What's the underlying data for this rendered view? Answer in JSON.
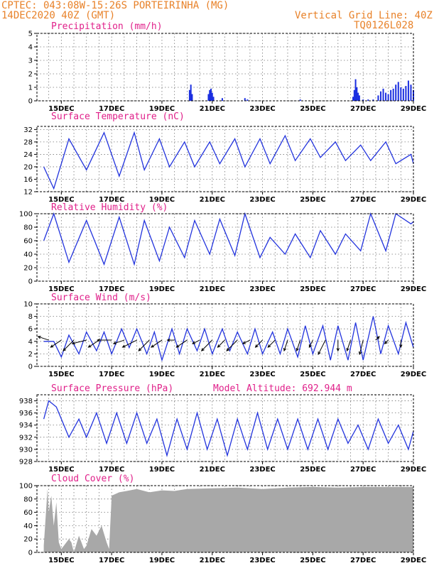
{
  "header": {
    "line1_left": "CPTEC:  043:08W-15:26S   PORTEIRINHA (MG)",
    "line2_left": "14DEC2020 40Z (GMT)",
    "line1_right": "Vertical Grid Line: 40Z",
    "line2_right": "TQ0126L028"
  },
  "x_labels": [
    "15DEC",
    "17DEC",
    "19DEC",
    "21DEC",
    "23DEC",
    "25DEC",
    "27DEC",
    "29DEC"
  ],
  "colors": {
    "line": "#2233dd",
    "bar": "#1a2ee0",
    "cloud": "#a8a8a8",
    "header": "#e8822a",
    "title": "#e0208a"
  },
  "chart_data": [
    {
      "type": "bar",
      "title": "Precipitation (mm/h)",
      "ylim": [
        0,
        5
      ],
      "yticks": [
        "0",
        "1",
        "2",
        "3",
        "4",
        "5"
      ],
      "x": [
        20.1,
        20.15,
        20.2,
        20.85,
        20.9,
        20.95,
        21.0,
        21.05,
        21.4,
        22.3,
        22.4,
        24.5,
        26.6,
        26.65,
        26.7,
        26.75,
        26.8,
        26.85,
        27.0,
        27.2,
        27.4,
        27.6,
        27.7,
        27.8,
        27.9,
        28.0,
        28.1,
        28.2,
        28.3,
        28.4,
        28.5,
        28.6,
        28.7,
        28.8,
        28.9,
        29.0
      ],
      "values": [
        0.8,
        1.2,
        0.5,
        0.5,
        0.8,
        0.9,
        0.6,
        0.3,
        0.2,
        0.2,
        0.1,
        0.1,
        0.3,
        0.8,
        1.6,
        1.0,
        0.6,
        0.4,
        0.1,
        0.1,
        0.1,
        0.4,
        0.7,
        0.9,
        0.6,
        0.5,
        0.8,
        0.9,
        1.2,
        1.4,
        1.0,
        0.9,
        1.1,
        1.5,
        1.2,
        0.8
      ]
    },
    {
      "type": "line",
      "title": "Surface Temperature (nC)",
      "ylim": [
        12,
        33
      ],
      "yticks": [
        "12",
        "16",
        "20",
        "24",
        "28",
        "32"
      ],
      "x": [
        14.3,
        14.7,
        15.3,
        16.0,
        16.7,
        17.3,
        17.9,
        18.3,
        18.9,
        19.3,
        19.9,
        20.3,
        20.9,
        21.3,
        21.9,
        22.3,
        22.9,
        23.3,
        23.9,
        24.3,
        24.9,
        25.3,
        25.9,
        26.3,
        26.9,
        27.3,
        27.9,
        28.3,
        28.9,
        29.0
      ],
      "values": [
        20,
        13,
        29,
        19,
        31,
        17,
        31,
        19,
        29,
        20,
        28,
        20,
        28,
        21,
        29,
        20,
        29,
        21,
        30,
        22,
        29,
        23,
        28,
        22,
        27,
        22,
        28,
        21,
        24,
        21
      ]
    },
    {
      "type": "line",
      "title": "Relative Humidity (%)",
      "ylim": [
        0,
        100
      ],
      "yticks": [
        "0",
        "20",
        "40",
        "60",
        "80",
        "100"
      ],
      "x": [
        14.3,
        14.7,
        15.3,
        16.0,
        16.7,
        17.3,
        17.9,
        18.3,
        18.9,
        19.3,
        19.9,
        20.3,
        20.9,
        21.3,
        21.9,
        22.3,
        22.9,
        23.3,
        23.9,
        24.3,
        24.9,
        25.3,
        25.9,
        26.3,
        26.9,
        27.3,
        27.9,
        28.3,
        28.9,
        29.0
      ],
      "values": [
        60,
        100,
        28,
        90,
        25,
        95,
        25,
        90,
        30,
        80,
        35,
        90,
        40,
        92,
        38,
        100,
        35,
        65,
        40,
        70,
        35,
        75,
        40,
        70,
        45,
        100,
        45,
        100,
        85,
        88
      ]
    },
    {
      "type": "line",
      "title": "Surface Wind (m/s)",
      "ylim": [
        0,
        10
      ],
      "yticks": [
        "0",
        "2",
        "4",
        "6",
        "8",
        "10"
      ],
      "x": [
        14.3,
        14.7,
        15.0,
        15.3,
        15.7,
        16.0,
        16.4,
        16.7,
        17.0,
        17.4,
        17.7,
        18.0,
        18.4,
        18.7,
        19.0,
        19.4,
        19.7,
        20.0,
        20.4,
        20.7,
        21.0,
        21.4,
        21.7,
        22.0,
        22.4,
        22.7,
        23.0,
        23.4,
        23.7,
        24.0,
        24.4,
        24.7,
        25.0,
        25.4,
        25.7,
        26.0,
        26.4,
        26.7,
        27.0,
        27.4,
        27.7,
        28.0,
        28.4,
        28.7,
        29.0
      ],
      "values": [
        4,
        4,
        1.5,
        5,
        2,
        5.5,
        2.5,
        5.5,
        2,
        6,
        3,
        6,
        2,
        5.5,
        1,
        6,
        2,
        6,
        2.5,
        6,
        2,
        6,
        2.5,
        5.5,
        2,
        6,
        2,
        5.5,
        2,
        6,
        1.5,
        6.5,
        2,
        6.5,
        1,
        6.5,
        1,
        7,
        1,
        8,
        2,
        6.5,
        2,
        7,
        3
      ]
    },
    {
      "type": "line",
      "title": "Surface Pressure (hPa)",
      "annotation": "Model Altitude: 692.944 m",
      "ylim": [
        928,
        939
      ],
      "yticks": [
        "928",
        "930",
        "932",
        "934",
        "936",
        "938"
      ],
      "x": [
        14.3,
        14.5,
        14.8,
        15.3,
        15.7,
        16.0,
        16.4,
        16.8,
        17.2,
        17.6,
        18.0,
        18.4,
        18.8,
        19.2,
        19.6,
        20.0,
        20.4,
        20.8,
        21.2,
        21.6,
        22.0,
        22.4,
        22.8,
        23.2,
        23.6,
        24.0,
        24.4,
        24.8,
        25.2,
        25.6,
        26.0,
        26.4,
        26.8,
        27.2,
        27.6,
        28.0,
        28.4,
        28.8,
        29.0
      ],
      "values": [
        935,
        938,
        937,
        932,
        935,
        932,
        936,
        931,
        936,
        931,
        936,
        931,
        935,
        929,
        935,
        930,
        936,
        930,
        935,
        929,
        935,
        930,
        936,
        930,
        935,
        930,
        935,
        930,
        935,
        930,
        935,
        931,
        934,
        930,
        935,
        931,
        934,
        930,
        933
      ]
    },
    {
      "type": "area",
      "title": "Cloud Cover (%)",
      "ylim": [
        0,
        100
      ],
      "yticks": [
        "0",
        "20",
        "40",
        "60",
        "80",
        "100"
      ],
      "x": [
        14.3,
        14.45,
        14.5,
        14.6,
        14.7,
        14.8,
        14.9,
        15.0,
        15.1,
        15.3,
        15.4,
        15.5,
        15.7,
        15.9,
        16.0,
        16.2,
        16.4,
        16.6,
        16.8,
        16.9,
        17.0,
        17.3,
        17.6,
        18.0,
        18.5,
        19.0,
        19.5,
        20.0,
        21.0,
        22.0,
        23.0,
        24.0,
        25.0,
        26.0,
        27.0,
        28.0,
        29.0
      ],
      "values": [
        10,
        95,
        60,
        85,
        40,
        75,
        15,
        5,
        10,
        20,
        15,
        0,
        25,
        5,
        10,
        35,
        25,
        40,
        15,
        5,
        85,
        90,
        92,
        95,
        90,
        93,
        92,
        95,
        96,
        97,
        95,
        97,
        98,
        97,
        98,
        98,
        98
      ]
    }
  ],
  "wind_vectors": {
    "x": [
      14.5,
      15.0,
      15.5,
      16.0,
      16.5,
      17.0,
      17.5,
      18.0,
      18.5,
      19.0,
      19.5,
      20.0,
      20.5,
      21.0,
      21.5,
      22.0,
      22.5,
      23.0,
      23.5,
      24.0,
      24.5,
      25.0,
      25.5,
      26.0,
      26.5,
      27.0,
      27.5,
      28.0,
      28.5
    ],
    "u": [
      -3,
      -3,
      -3,
      -4,
      -3,
      -4,
      -3,
      -4,
      -3,
      -3,
      -2,
      -3,
      -2,
      -3,
      -2,
      -3,
      -2,
      -2,
      -2,
      -1,
      -1,
      -1,
      -2,
      0,
      -1,
      -1,
      1,
      -1,
      0
    ],
    "v": [
      1,
      -2,
      -3,
      -1,
      -2,
      0,
      -1,
      -2,
      -3,
      -2,
      0,
      -2,
      -1,
      -3,
      -2,
      -3,
      -1,
      -2,
      -2,
      -3,
      -3,
      -2,
      -4,
      -3,
      -3,
      -4,
      1,
      -1,
      -2
    ]
  }
}
